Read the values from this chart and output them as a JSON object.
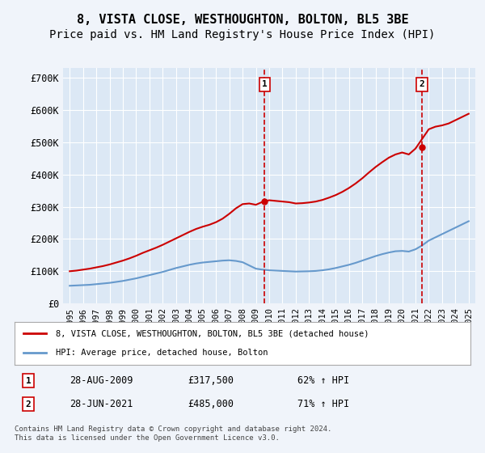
{
  "title": "8, VISTA CLOSE, WESTHOUGHTON, BOLTON, BL5 3BE",
  "subtitle": "Price paid vs. HM Land Registry's House Price Index (HPI)",
  "legend_line1": "8, VISTA CLOSE, WESTHOUGHTON, BOLTON, BL5 3BE (detached house)",
  "legend_line2": "HPI: Average price, detached house, Bolton",
  "footer": "Contains HM Land Registry data © Crown copyright and database right 2024.\nThis data is licensed under the Open Government Licence v3.0.",
  "transaction1_label": "1",
  "transaction1_date": "28-AUG-2009",
  "transaction1_price": "£317,500",
  "transaction1_hpi": "62% ↑ HPI",
  "transaction2_label": "2",
  "transaction2_date": "28-JUN-2021",
  "transaction2_price": "£485,000",
  "transaction2_hpi": "71% ↑ HPI",
  "vline1_x": 2009.65,
  "vline2_x": 2021.48,
  "marker1_x": 2009.65,
  "marker1_y": 640000,
  "marker2_x": 2021.48,
  "marker2_y": 640000,
  "xlim": [
    1994.5,
    2025.5
  ],
  "ylim": [
    0,
    730000
  ],
  "yticks": [
    0,
    100000,
    200000,
    300000,
    400000,
    500000,
    600000,
    700000
  ],
  "ytick_labels": [
    "£0",
    "£100K",
    "£200K",
    "£300K",
    "£400K",
    "£500K",
    "£600K",
    "£700K"
  ],
  "xticks": [
    1995,
    1996,
    1997,
    1998,
    1999,
    2000,
    2001,
    2002,
    2003,
    2004,
    2005,
    2006,
    2007,
    2008,
    2009,
    2010,
    2011,
    2012,
    2013,
    2014,
    2015,
    2016,
    2017,
    2018,
    2019,
    2020,
    2021,
    2022,
    2023,
    2024,
    2025
  ],
  "red_line_color": "#cc0000",
  "blue_line_color": "#6699cc",
  "vline_color": "#cc0000",
  "background_color": "#f0f4fa",
  "plot_bg_color": "#dce8f5",
  "grid_color": "#ffffff",
  "title_fontsize": 11,
  "subtitle_fontsize": 10,
  "marker_box_color": "#cc0000",
  "hpi_years": [
    1995,
    1995.5,
    1996,
    1996.5,
    1997,
    1997.5,
    1998,
    1998.5,
    1999,
    1999.5,
    2000,
    2000.5,
    2001,
    2001.5,
    2002,
    2002.5,
    2003,
    2003.5,
    2004,
    2004.5,
    2005,
    2005.5,
    2006,
    2006.5,
    2007,
    2007.5,
    2008,
    2008.5,
    2009,
    2009.5,
    2010,
    2010.5,
    2011,
    2011.5,
    2012,
    2012.5,
    2013,
    2013.5,
    2014,
    2014.5,
    2015,
    2015.5,
    2016,
    2016.5,
    2017,
    2017.5,
    2018,
    2018.5,
    2019,
    2019.5,
    2020,
    2020.5,
    2021,
    2021.5,
    2022,
    2022.5,
    2023,
    2023.5,
    2024,
    2024.5,
    2025
  ],
  "hpi_values": [
    55000,
    56000,
    57000,
    58000,
    60000,
    62000,
    64000,
    67000,
    70000,
    74000,
    78000,
    83000,
    88000,
    93000,
    98000,
    104000,
    110000,
    115000,
    120000,
    124000,
    127000,
    129000,
    131000,
    133000,
    134000,
    132000,
    128000,
    118000,
    108000,
    105000,
    103000,
    102000,
    101000,
    100000,
    99000,
    99500,
    100000,
    101000,
    103000,
    106000,
    110000,
    115000,
    120000,
    126000,
    133000,
    140000,
    147000,
    153000,
    158000,
    162000,
    163000,
    161000,
    168000,
    180000,
    195000,
    205000,
    215000,
    225000,
    235000,
    245000,
    255000
  ],
  "price_years": [
    1995,
    1995.5,
    1996,
    1996.5,
    1997,
    1997.5,
    1998,
    1998.5,
    1999,
    1999.5,
    2000,
    2000.5,
    2001,
    2001.5,
    2002,
    2002.5,
    2003,
    2003.5,
    2004,
    2004.5,
    2005,
    2005.5,
    2006,
    2006.5,
    2007,
    2007.5,
    2008,
    2008.5,
    2009,
    2009.5,
    2010,
    2010.5,
    2011,
    2011.5,
    2012,
    2012.5,
    2013,
    2013.5,
    2014,
    2014.5,
    2015,
    2015.5,
    2016,
    2016.5,
    2017,
    2017.5,
    2018,
    2018.5,
    2019,
    2019.5,
    2020,
    2020.5,
    2021,
    2021.5,
    2022,
    2022.5,
    2023,
    2023.5,
    2024,
    2024.5,
    2025
  ],
  "price_values": [
    100000,
    102000,
    105000,
    108000,
    112000,
    116000,
    121000,
    127000,
    133000,
    140000,
    148000,
    157000,
    165000,
    173000,
    182000,
    192000,
    202000,
    212000,
    222000,
    231000,
    238000,
    244000,
    252000,
    263000,
    278000,
    295000,
    308000,
    310000,
    306000,
    315000,
    320000,
    318000,
    316000,
    314000,
    310000,
    311000,
    313000,
    316000,
    321000,
    328000,
    336000,
    346000,
    358000,
    372000,
    388000,
    406000,
    423000,
    438000,
    452000,
    462000,
    468000,
    462000,
    480000,
    510000,
    540000,
    548000,
    552000,
    558000,
    568000,
    578000,
    588000
  ]
}
